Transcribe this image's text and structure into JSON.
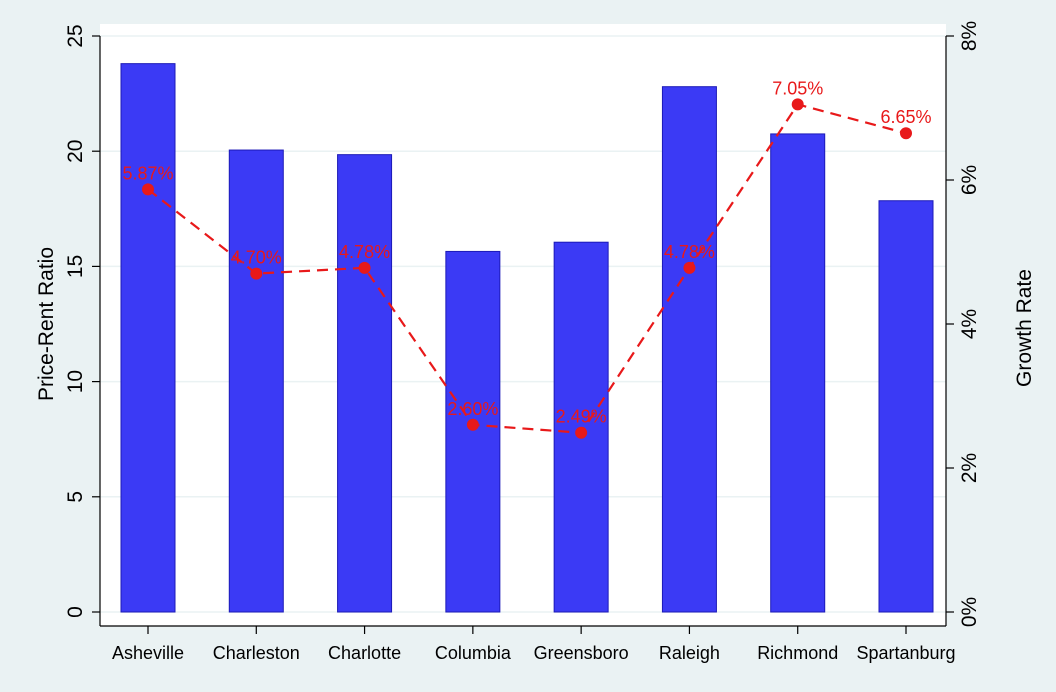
{
  "chart_data": {
    "type": "bar",
    "title": "",
    "categories": [
      "Asheville",
      "Charleston",
      "Charlotte",
      "Columbia",
      "Greensboro",
      "Raleigh",
      "Richmond",
      "Spartanburg"
    ],
    "series": [
      {
        "type": "bar",
        "axis": "left",
        "values": [
          23.8,
          20.05,
          19.85,
          15.65,
          16.05,
          22.8,
          20.75,
          17.85
        ],
        "color": "#3b3af5"
      },
      {
        "type": "line",
        "axis": "right",
        "style": "dashed",
        "marker": "circle",
        "values": [
          5.87,
          4.7,
          4.78,
          2.6,
          2.49,
          4.78,
          7.05,
          6.65
        ],
        "labels": [
          "5.87%",
          "4.70%",
          "4.78%",
          "2.60%",
          "2.49%",
          "4.78%",
          "7.05%",
          "6.65%"
        ],
        "color": "#e8191a"
      }
    ],
    "ylabel": "Price-Rent Ratio",
    "ylim": [
      0,
      25
    ],
    "yticks": [
      "0",
      "5",
      "10",
      "15",
      "20",
      "25"
    ],
    "y2label": "Growth Rate",
    "y2lim": [
      0,
      8
    ],
    "y2ticks": [
      "0%",
      "2%",
      "4%",
      "6%",
      "8%"
    ],
    "grid": true,
    "background": "#eaf2f3",
    "plot_background": "#ffffff",
    "grid_color": "#eaf2f3"
  }
}
